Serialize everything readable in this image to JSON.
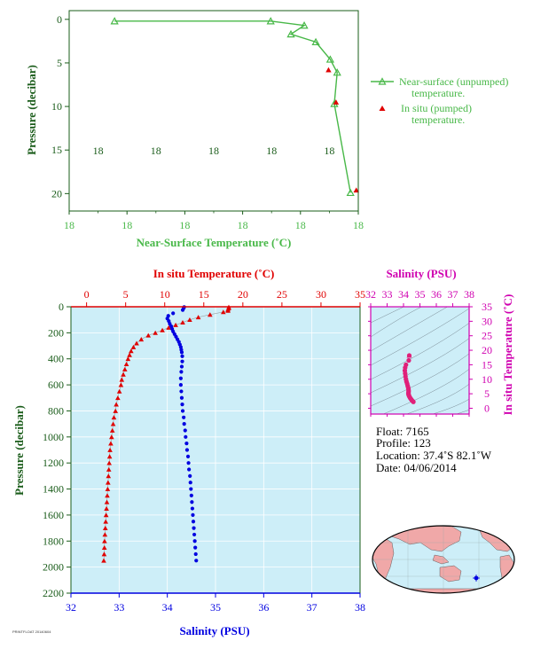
{
  "colors": {
    "green": "#48b848",
    "red": "#e00000",
    "blue": "#0000e0",
    "magenta": "#d000b0",
    "panel_bg": "#cdeef8",
    "dark_green": "#1a5c1a",
    "pink": "#f0a8a8"
  },
  "chart_data": [
    {
      "type": "line",
      "id": "near-surface",
      "xlabel": "Near-Surface Temperature (˚C)",
      "ylabel": "Pressure (decibar)",
      "x_tick_labels": [
        "18",
        "18",
        "18",
        "18",
        "18",
        "18"
      ],
      "x_range": [
        0,
        1
      ],
      "y_tick_labels": [
        "0",
        "5",
        "10",
        "15",
        "20"
      ],
      "y_ticks": [
        0,
        5,
        10,
        15,
        20
      ],
      "ylim": [
        -1,
        22
      ],
      "y_reversed": true,
      "series": [
        {
          "name": "Near-surface (unpumped) temperature.",
          "marker": "open-triangle",
          "points": [
            [
              0.157,
              0.2
            ],
            [
              0.697,
              0.2
            ],
            [
              0.813,
              0.7
            ],
            [
              0.767,
              1.7
            ],
            [
              0.853,
              2.6
            ],
            [
              0.903,
              4.6
            ],
            [
              0.927,
              6.1
            ],
            [
              0.917,
              9.7
            ],
            [
              0.973,
              19.9
            ]
          ]
        },
        {
          "name": "In situ (pumped) temperature.",
          "marker": "filled-triangle",
          "points": [
            [
              0.897,
              5.8
            ],
            [
              0.923,
              9.5
            ],
            [
              0.993,
              19.6
            ]
          ]
        }
      ],
      "legend": "right"
    },
    {
      "type": "scatter",
      "id": "profile",
      "ylabel": "Pressure (decibar)",
      "y_ticks": [
        0,
        200,
        400,
        600,
        800,
        1000,
        1200,
        1400,
        1600,
        1800,
        2000,
        2200
      ],
      "ylim": [
        0,
        2200
      ],
      "y_reversed": true,
      "temperature_axis": {
        "label": "In situ Temperature (˚C)",
        "ticks": [
          0,
          5,
          10,
          15,
          20,
          25,
          30,
          35
        ],
        "range": [
          -2,
          35
        ],
        "position": "top"
      },
      "salinity_axis": {
        "label": "Salinity (PSU)",
        "ticks": [
          32,
          33,
          34,
          35,
          36,
          37,
          38
        ],
        "range": [
          32,
          38
        ],
        "position": "bottom"
      },
      "series": [
        {
          "name": "Temperature",
          "marker": "filled-triangle",
          "points": [
            [
              18.2,
              2
            ],
            [
              18.2,
              10
            ],
            [
              18.1,
              20
            ],
            [
              18.1,
              30
            ],
            [
              17.5,
              40
            ],
            [
              15.8,
              60
            ],
            [
              14.3,
              80
            ],
            [
              13.2,
              100
            ],
            [
              12.3,
              120
            ],
            [
              11.4,
              140
            ],
            [
              10.5,
              160
            ],
            [
              9.7,
              180
            ],
            [
              8.8,
              200
            ],
            [
              7.9,
              220
            ],
            [
              7.0,
              250
            ],
            [
              6.4,
              280
            ],
            [
              6.0,
              310
            ],
            [
              5.7,
              340
            ],
            [
              5.5,
              370
            ],
            [
              5.3,
              400
            ],
            [
              5.1,
              440
            ],
            [
              4.9,
              480
            ],
            [
              4.7,
              520
            ],
            [
              4.5,
              560
            ],
            [
              4.4,
              600
            ],
            [
              4.2,
              650
            ],
            [
              4.0,
              700
            ],
            [
              3.8,
              750
            ],
            [
              3.7,
              800
            ],
            [
              3.5,
              850
            ],
            [
              3.4,
              900
            ],
            [
              3.3,
              950
            ],
            [
              3.2,
              1000
            ],
            [
              3.1,
              1050
            ],
            [
              3.0,
              1100
            ],
            [
              2.95,
              1150
            ],
            [
              2.9,
              1200
            ],
            [
              2.85,
              1250
            ],
            [
              2.8,
              1300
            ],
            [
              2.75,
              1350
            ],
            [
              2.7,
              1400
            ],
            [
              2.65,
              1450
            ],
            [
              2.6,
              1500
            ],
            [
              2.55,
              1550
            ],
            [
              2.5,
              1600
            ],
            [
              2.45,
              1650
            ],
            [
              2.4,
              1700
            ],
            [
              2.35,
              1750
            ],
            [
              2.3,
              1800
            ],
            [
              2.28,
              1850
            ],
            [
              2.25,
              1900
            ],
            [
              2.2,
              1950
            ]
          ]
        },
        {
          "name": "Salinity",
          "marker": "dot",
          "points": [
            [
              34.35,
              2
            ],
            [
              34.34,
              10
            ],
            [
              34.32,
              25
            ],
            [
              34.12,
              50
            ],
            [
              34.02,
              70
            ],
            [
              34.0,
              90
            ],
            [
              34.03,
              110
            ],
            [
              34.05,
              130
            ],
            [
              34.08,
              150
            ],
            [
              34.1,
              170
            ],
            [
              34.12,
              190
            ],
            [
              34.15,
              210
            ],
            [
              34.18,
              230
            ],
            [
              34.21,
              250
            ],
            [
              34.24,
              270
            ],
            [
              34.26,
              290
            ],
            [
              34.28,
              310
            ],
            [
              34.29,
              330
            ],
            [
              34.3,
              350
            ],
            [
              34.31,
              380
            ],
            [
              34.31,
              420
            ],
            [
              34.3,
              460
            ],
            [
              34.29,
              500
            ],
            [
              34.28,
              550
            ],
            [
              34.28,
              600
            ],
            [
              34.29,
              650
            ],
            [
              34.3,
              700
            ],
            [
              34.31,
              750
            ],
            [
              34.32,
              800
            ],
            [
              34.34,
              850
            ],
            [
              34.35,
              900
            ],
            [
              34.37,
              950
            ],
            [
              34.38,
              1000
            ],
            [
              34.4,
              1050
            ],
            [
              34.41,
              1100
            ],
            [
              34.43,
              1150
            ],
            [
              34.44,
              1200
            ],
            [
              34.45,
              1250
            ],
            [
              34.47,
              1300
            ],
            [
              34.48,
              1350
            ],
            [
              34.49,
              1400
            ],
            [
              34.5,
              1450
            ],
            [
              34.51,
              1500
            ],
            [
              34.52,
              1550
            ],
            [
              34.53,
              1600
            ],
            [
              34.54,
              1650
            ],
            [
              34.55,
              1700
            ],
            [
              34.56,
              1750
            ],
            [
              34.57,
              1800
            ],
            [
              34.58,
              1850
            ],
            [
              34.59,
              1900
            ],
            [
              34.6,
              1950
            ]
          ]
        }
      ]
    },
    {
      "type": "scatter",
      "id": "ts-diagram",
      "xlabel": "Salinity (PSU)",
      "ylabel": "In situ Temperature (˚C)",
      "x_ticks": [
        32,
        33,
        34,
        35,
        36,
        37,
        38
      ],
      "xlim": [
        32,
        38
      ],
      "y_ticks": [
        0,
        5,
        10,
        15,
        20,
        25,
        30,
        35
      ],
      "ylim": [
        -2,
        35
      ],
      "grid": "density contours",
      "points": [
        [
          34.35,
          18.2
        ],
        [
          34.32,
          16.5
        ],
        [
          34.15,
          15.0
        ],
        [
          34.1,
          14.0
        ],
        [
          34.08,
          13.0
        ],
        [
          34.1,
          12.0
        ],
        [
          34.12,
          11.0
        ],
        [
          34.15,
          10.0
        ],
        [
          34.18,
          9.2
        ],
        [
          34.22,
          8.5
        ],
        [
          34.25,
          7.8
        ],
        [
          34.28,
          7.2
        ],
        [
          34.3,
          6.6
        ],
        [
          34.31,
          6.1
        ],
        [
          34.31,
          5.7
        ],
        [
          34.3,
          5.3
        ],
        [
          34.3,
          5.0
        ],
        [
          34.31,
          4.7
        ],
        [
          34.33,
          4.4
        ],
        [
          34.35,
          4.1
        ],
        [
          34.38,
          3.8
        ],
        [
          34.41,
          3.5
        ],
        [
          34.45,
          3.2
        ],
        [
          34.49,
          2.9
        ],
        [
          34.53,
          2.6
        ],
        [
          34.57,
          2.4
        ],
        [
          34.6,
          2.2
        ]
      ]
    }
  ],
  "info": {
    "float": "Float:  7165",
    "profile": "Profile:  123",
    "location": "Location:  37.4˚S  82.1˚W",
    "date": "Date:  04/06/2014"
  },
  "map": {
    "float_marker": "float-location-marker"
  }
}
